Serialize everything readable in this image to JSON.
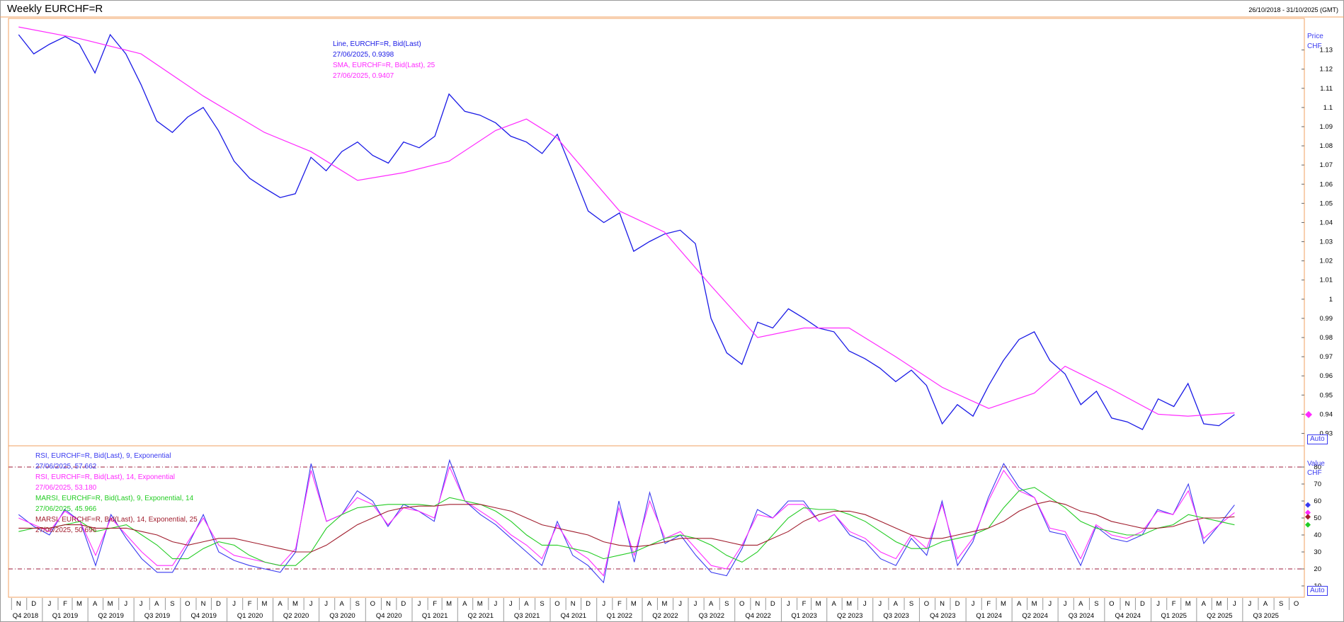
{
  "header": {
    "title": "Weekly EURCHF=R",
    "date_range": "26/10/2018 - 31/10/2025 (GMT)"
  },
  "colors": {
    "price_line": "#1a1ae6",
    "sma_line": "#ff2aff",
    "rsi9": "#3a3af0",
    "rsi14": "#ff2aff",
    "marsi9": "#22cc22",
    "marsi14": "#a01c2c",
    "frame": "#f0a060",
    "ref_line": "#9e1a3a"
  },
  "price_panel": {
    "axis_title": "Price",
    "axis_unit": "CHF",
    "auto_label": "Auto",
    "legend": [
      {
        "text": "Line, EURCHF=R, Bid(Last)",
        "color": "#1a1ae6"
      },
      {
        "text": "27/06/2025, 0.9398",
        "color": "#1a1ae6"
      },
      {
        "text": "SMA, EURCHF=R, Bid(Last),  25",
        "color": "#ff2aff"
      },
      {
        "text": "27/06/2025, 0.9407",
        "color": "#ff2aff"
      }
    ],
    "ticks": [
      "1.13",
      "1.12",
      "1.11",
      "1.1",
      "1.09",
      "1.08",
      "1.07",
      "1.06",
      "1.05",
      "1.04",
      "1.03",
      "1.02",
      "1.01",
      "1",
      "0.99",
      "0.98",
      "0.97",
      "0.96",
      "0.95",
      "0.94",
      "0.93"
    ]
  },
  "rsi_panel": {
    "axis_title": "Value",
    "axis_unit": "CHF",
    "auto_label": "Auto",
    "legend": [
      {
        "text": "RSI, EURCHF=R, Bid(Last),  9, Exponential",
        "color": "#3a3af0"
      },
      {
        "text": "27/06/2025, 57.662",
        "color": "#3a3af0"
      },
      {
        "text": "RSI, EURCHF=R, Bid(Last),  14, Exponential",
        "color": "#ff2aff"
      },
      {
        "text": "27/06/2025, 53.180",
        "color": "#ff2aff"
      },
      {
        "text": "MARSI, EURCHF=R, Bid(Last),  9, Exponential, 14",
        "color": "#22cc22"
      },
      {
        "text": "27/06/2025, 45.966",
        "color": "#22cc22"
      },
      {
        "text": "MARSI, EURCHF=R, Bid(Last),  14, Exponential, 25",
        "color": "#a01c2c"
      },
      {
        "text": "27/06/2025, 50.696",
        "color": "#a01c2c"
      }
    ],
    "ticks": [
      "80",
      "70",
      "60",
      "50",
      "40",
      "30",
      "20",
      "10"
    ]
  },
  "x_axis": {
    "months": [
      "N",
      "D",
      "J",
      "F",
      "M",
      "A",
      "M",
      "J",
      "J",
      "A",
      "S",
      "O",
      "N",
      "D",
      "J",
      "F",
      "M",
      "A",
      "M",
      "J",
      "J",
      "A",
      "S",
      "O",
      "N",
      "D",
      "J",
      "F",
      "M",
      "A",
      "M",
      "J",
      "J",
      "A",
      "S",
      "O",
      "N",
      "D",
      "J",
      "F",
      "M",
      "A",
      "M",
      "J",
      "J",
      "A",
      "S",
      "O",
      "N",
      "D",
      "J",
      "F",
      "M",
      "A",
      "M",
      "J",
      "J",
      "A",
      "S",
      "O",
      "N",
      "D",
      "J",
      "F",
      "M",
      "A",
      "M",
      "J",
      "J",
      "A",
      "S",
      "O",
      "N",
      "D",
      "J",
      "F",
      "M",
      "A",
      "M",
      "J",
      "J",
      "A",
      "S",
      "O"
    ],
    "quarters": [
      "Q4 2018",
      "Q1 2019",
      "Q2 2019",
      "Q3 2019",
      "Q4 2019",
      "Q1 2020",
      "Q2 2020",
      "Q3 2020",
      "Q4 2020",
      "Q1 2021",
      "Q2 2021",
      "Q3 2021",
      "Q4 2021",
      "Q1 2022",
      "Q2 2022",
      "Q3 2022",
      "Q4 2022",
      "Q1 2023",
      "Q2 2023",
      "Q3 2023",
      "Q4 2023",
      "Q1 2024",
      "Q2 2024",
      "Q3 2024",
      "Q4 2024",
      "Q1 2025",
      "Q2 2025",
      "Q3 2025"
    ]
  },
  "chart_data": [
    {
      "type": "line",
      "title": "Weekly EURCHF=R",
      "x_range": [
        "2018-10-26",
        "2025-10-31"
      ],
      "ylim": [
        0.925,
        1.145
      ],
      "series": [
        {
          "name": "Line, EURCHF=R, Bid(Last)",
          "x": [
            "2018-11",
            "2018-12",
            "2019-01",
            "2019-02",
            "2019-03",
            "2019-04",
            "2019-05",
            "2019-06",
            "2019-07",
            "2019-08",
            "2019-09",
            "2019-10",
            "2019-11",
            "2019-12",
            "2020-01",
            "2020-02",
            "2020-03",
            "2020-04",
            "2020-05",
            "2020-06",
            "2020-07",
            "2020-08",
            "2020-09",
            "2020-10",
            "2020-11",
            "2020-12",
            "2021-01",
            "2021-02",
            "2021-03",
            "2021-04",
            "2021-05",
            "2021-06",
            "2021-07",
            "2021-08",
            "2021-09",
            "2021-10",
            "2021-11",
            "2021-12",
            "2022-01",
            "2022-02",
            "2022-03",
            "2022-04",
            "2022-05",
            "2022-06",
            "2022-07",
            "2022-08",
            "2022-09",
            "2022-10",
            "2022-11",
            "2022-12",
            "2023-01",
            "2023-02",
            "2023-03",
            "2023-04",
            "2023-05",
            "2023-06",
            "2023-07",
            "2023-08",
            "2023-09",
            "2023-10",
            "2023-11",
            "2023-12",
            "2024-01",
            "2024-02",
            "2024-03",
            "2024-04",
            "2024-05",
            "2024-06",
            "2024-07",
            "2024-08",
            "2024-09",
            "2024-10",
            "2024-11",
            "2024-12",
            "2025-01",
            "2025-02",
            "2025-03",
            "2025-04",
            "2025-05",
            "2025-06"
          ],
          "y": [
            1.138,
            1.128,
            1.133,
            1.137,
            1.133,
            1.118,
            1.138,
            1.128,
            1.112,
            1.093,
            1.087,
            1.095,
            1.1,
            1.088,
            1.072,
            1.063,
            1.058,
            1.053,
            1.055,
            1.074,
            1.067,
            1.077,
            1.082,
            1.075,
            1.071,
            1.082,
            1.079,
            1.085,
            1.107,
            1.098,
            1.096,
            1.092,
            1.085,
            1.082,
            1.076,
            1.086,
            1.066,
            1.046,
            1.04,
            1.045,
            1.025,
            1.03,
            1.034,
            1.036,
            1.029,
            0.99,
            0.972,
            0.966,
            0.988,
            0.985,
            0.995,
            0.99,
            0.985,
            0.983,
            0.973,
            0.969,
            0.964,
            0.957,
            0.963,
            0.955,
            0.935,
            0.945,
            0.939,
            0.955,
            0.968,
            0.979,
            0.983,
            0.968,
            0.961,
            0.945,
            0.952,
            0.938,
            0.936,
            0.932,
            0.948,
            0.944,
            0.956,
            0.935,
            0.934,
            0.9398
          ]
        },
        {
          "name": "SMA, EURCHF=R, Bid(Last),  25",
          "x": [
            "2018-11",
            "2019-03",
            "2019-07",
            "2019-11",
            "2020-03",
            "2020-06",
            "2020-09",
            "2020-12",
            "2021-03",
            "2021-06",
            "2021-08",
            "2021-10",
            "2021-12",
            "2022-02",
            "2022-05",
            "2022-08",
            "2022-11",
            "2023-02",
            "2023-05",
            "2023-08",
            "2023-11",
            "2024-02",
            "2024-05",
            "2024-07",
            "2024-10",
            "2025-01",
            "2025-03",
            "2025-06"
          ],
          "y": [
            1.142,
            1.136,
            1.128,
            1.106,
            1.087,
            1.077,
            1.062,
            1.066,
            1.072,
            1.088,
            1.094,
            1.084,
            1.065,
            1.046,
            1.035,
            1.007,
            0.98,
            0.985,
            0.985,
            0.97,
            0.954,
            0.943,
            0.951,
            0.965,
            0.953,
            0.94,
            0.939,
            0.9407
          ]
        }
      ]
    },
    {
      "type": "line",
      "ylim": [
        5,
        90
      ],
      "reference_lines": [
        80,
        20
      ],
      "series": [
        {
          "name": "RSI, EURCHF=R, Bid(Last),  9, Exponential",
          "y": [
            52,
            45,
            40,
            55,
            48,
            22,
            52,
            38,
            26,
            18,
            18,
            34,
            52,
            30,
            25,
            22,
            20,
            18,
            30,
            82,
            48,
            52,
            66,
            60,
            45,
            58,
            54,
            48,
            84,
            60,
            52,
            46,
            38,
            30,
            22,
            48,
            28,
            22,
            12,
            60,
            24,
            65,
            35,
            40,
            28,
            18,
            16,
            32,
            55,
            50,
            60,
            60,
            48,
            52,
            40,
            36,
            26,
            22,
            38,
            28,
            60,
            22,
            36,
            62,
            82,
            68,
            62,
            42,
            40,
            22,
            45,
            38,
            36,
            40,
            55,
            52,
            70,
            35,
            46,
            57.662
          ]
        },
        {
          "name": "RSI, EURCHF=R, Bid(Last),  14, Exponential",
          "y": [
            50,
            46,
            42,
            54,
            48,
            28,
            50,
            40,
            30,
            22,
            22,
            36,
            50,
            34,
            28,
            26,
            24,
            22,
            32,
            78,
            48,
            52,
            62,
            58,
            46,
            56,
            54,
            50,
            80,
            60,
            54,
            48,
            40,
            34,
            26,
            46,
            32,
            26,
            16,
            56,
            28,
            60,
            38,
            42,
            32,
            22,
            20,
            34,
            52,
            50,
            58,
            58,
            48,
            52,
            42,
            38,
            30,
            26,
            40,
            32,
            58,
            26,
            38,
            60,
            78,
            66,
            62,
            44,
            42,
            26,
            46,
            40,
            38,
            42,
            54,
            52,
            66,
            38,
            46,
            53.18
          ]
        },
        {
          "name": "MARSI, EURCHF=R, Bid(Last),  9, Exponential, 14",
          "y": [
            42,
            44,
            44,
            46,
            48,
            42,
            44,
            46,
            40,
            34,
            26,
            26,
            32,
            36,
            34,
            28,
            24,
            22,
            22,
            30,
            44,
            52,
            56,
            57,
            58,
            58,
            58,
            57,
            62,
            60,
            58,
            54,
            48,
            40,
            34,
            34,
            32,
            30,
            26,
            28,
            30,
            34,
            38,
            40,
            38,
            34,
            28,
            24,
            30,
            40,
            50,
            56,
            55,
            55,
            52,
            48,
            42,
            36,
            32,
            32,
            36,
            38,
            40,
            44,
            56,
            66,
            68,
            62,
            56,
            48,
            44,
            42,
            40,
            40,
            44,
            46,
            52,
            50,
            48,
            45.966
          ]
        },
        {
          "name": "MARSI, EURCHF=R, Bid(Last),  14, Exponential, 25",
          "y": [
            44,
            44,
            44,
            46,
            46,
            44,
            44,
            44,
            42,
            40,
            36,
            34,
            36,
            38,
            38,
            36,
            34,
            32,
            30,
            30,
            34,
            40,
            46,
            50,
            54,
            56,
            57,
            57,
            58,
            58,
            58,
            56,
            54,
            50,
            46,
            44,
            42,
            40,
            36,
            34,
            33,
            34,
            36,
            38,
            38,
            38,
            36,
            34,
            34,
            38,
            42,
            48,
            52,
            54,
            54,
            52,
            48,
            44,
            40,
            38,
            38,
            40,
            42,
            44,
            48,
            54,
            58,
            60,
            58,
            54,
            52,
            48,
            46,
            44,
            44,
            45,
            48,
            50,
            50,
            50.696
          ]
        }
      ]
    }
  ]
}
